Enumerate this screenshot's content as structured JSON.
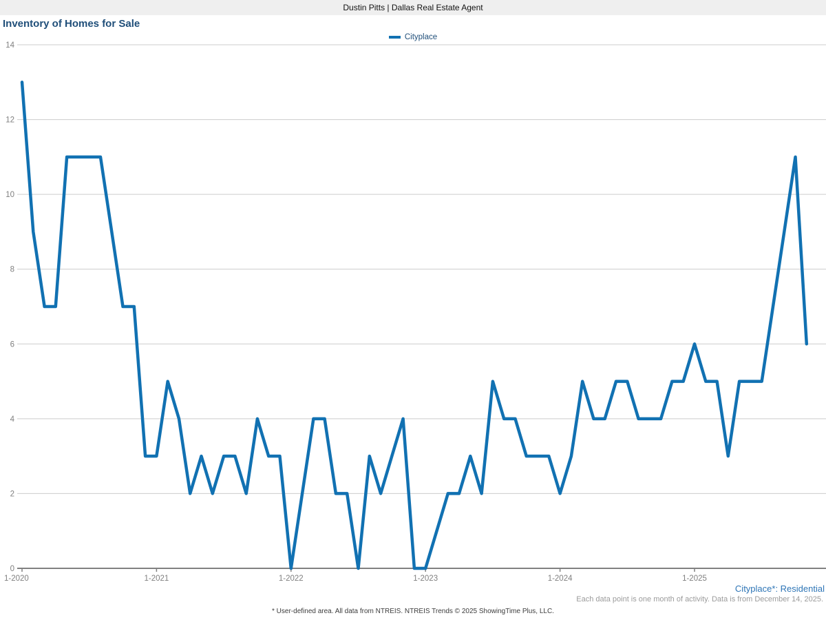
{
  "header": {
    "title": "Dustin Pitts | Dallas Real Estate Agent"
  },
  "chart": {
    "title": "Inventory of Homes for Sale",
    "legend": {
      "label": "Cityplace"
    }
  },
  "footer": {
    "area_note": "Cityplace*: Residential",
    "data_note": "Each data point is one month of activity. Data is from December 14, 2025.",
    "disclaimer": "* User-defined area. All data from NTREIS. NTREIS Trends © 2025 ShowingTime Plus, LLC."
  },
  "colors": {
    "line": "#1171b2",
    "title_text": "#1f4e79",
    "legend_text": "#1f4e79",
    "area_note_text": "#2e75b6",
    "axis_line": "#808080",
    "axis_text": "#7f7f7f",
    "gridline": "#cccccc",
    "header_bg": "#efefef"
  },
  "chart_data": {
    "type": "line",
    "title": "Inventory of Homes for Sale",
    "xlabel": "",
    "ylabel": "",
    "ylim": [
      0,
      14
    ],
    "y_ticks": [
      0,
      2,
      4,
      6,
      8,
      10,
      12,
      14
    ],
    "grid": "horizontal",
    "legend_position": "top-center",
    "x_tick_labels": [
      "1-2020",
      "1-2021",
      "1-2022",
      "1-2023",
      "1-2024",
      "1-2025"
    ],
    "x_tick_month_indices": [
      0,
      12,
      24,
      36,
      48,
      60
    ],
    "x_start_month": "1-2020",
    "x_end_month": "11-2025",
    "series": [
      {
        "name": "Cityplace",
        "values": [
          13,
          9,
          7,
          7,
          11,
          11,
          11,
          11,
          9,
          7,
          7,
          3,
          3,
          5,
          4,
          2,
          3,
          2,
          3,
          3,
          2,
          4,
          3,
          3,
          0,
          2,
          4,
          4,
          2,
          2,
          0,
          3,
          2,
          3,
          4,
          0,
          0,
          1,
          2,
          2,
          3,
          2,
          5,
          4,
          4,
          3,
          3,
          3,
          2,
          3,
          5,
          4,
          4,
          5,
          5,
          4,
          4,
          4,
          5,
          5,
          6,
          5,
          5,
          3,
          5,
          5,
          5,
          7,
          9,
          11,
          6
        ]
      }
    ]
  }
}
